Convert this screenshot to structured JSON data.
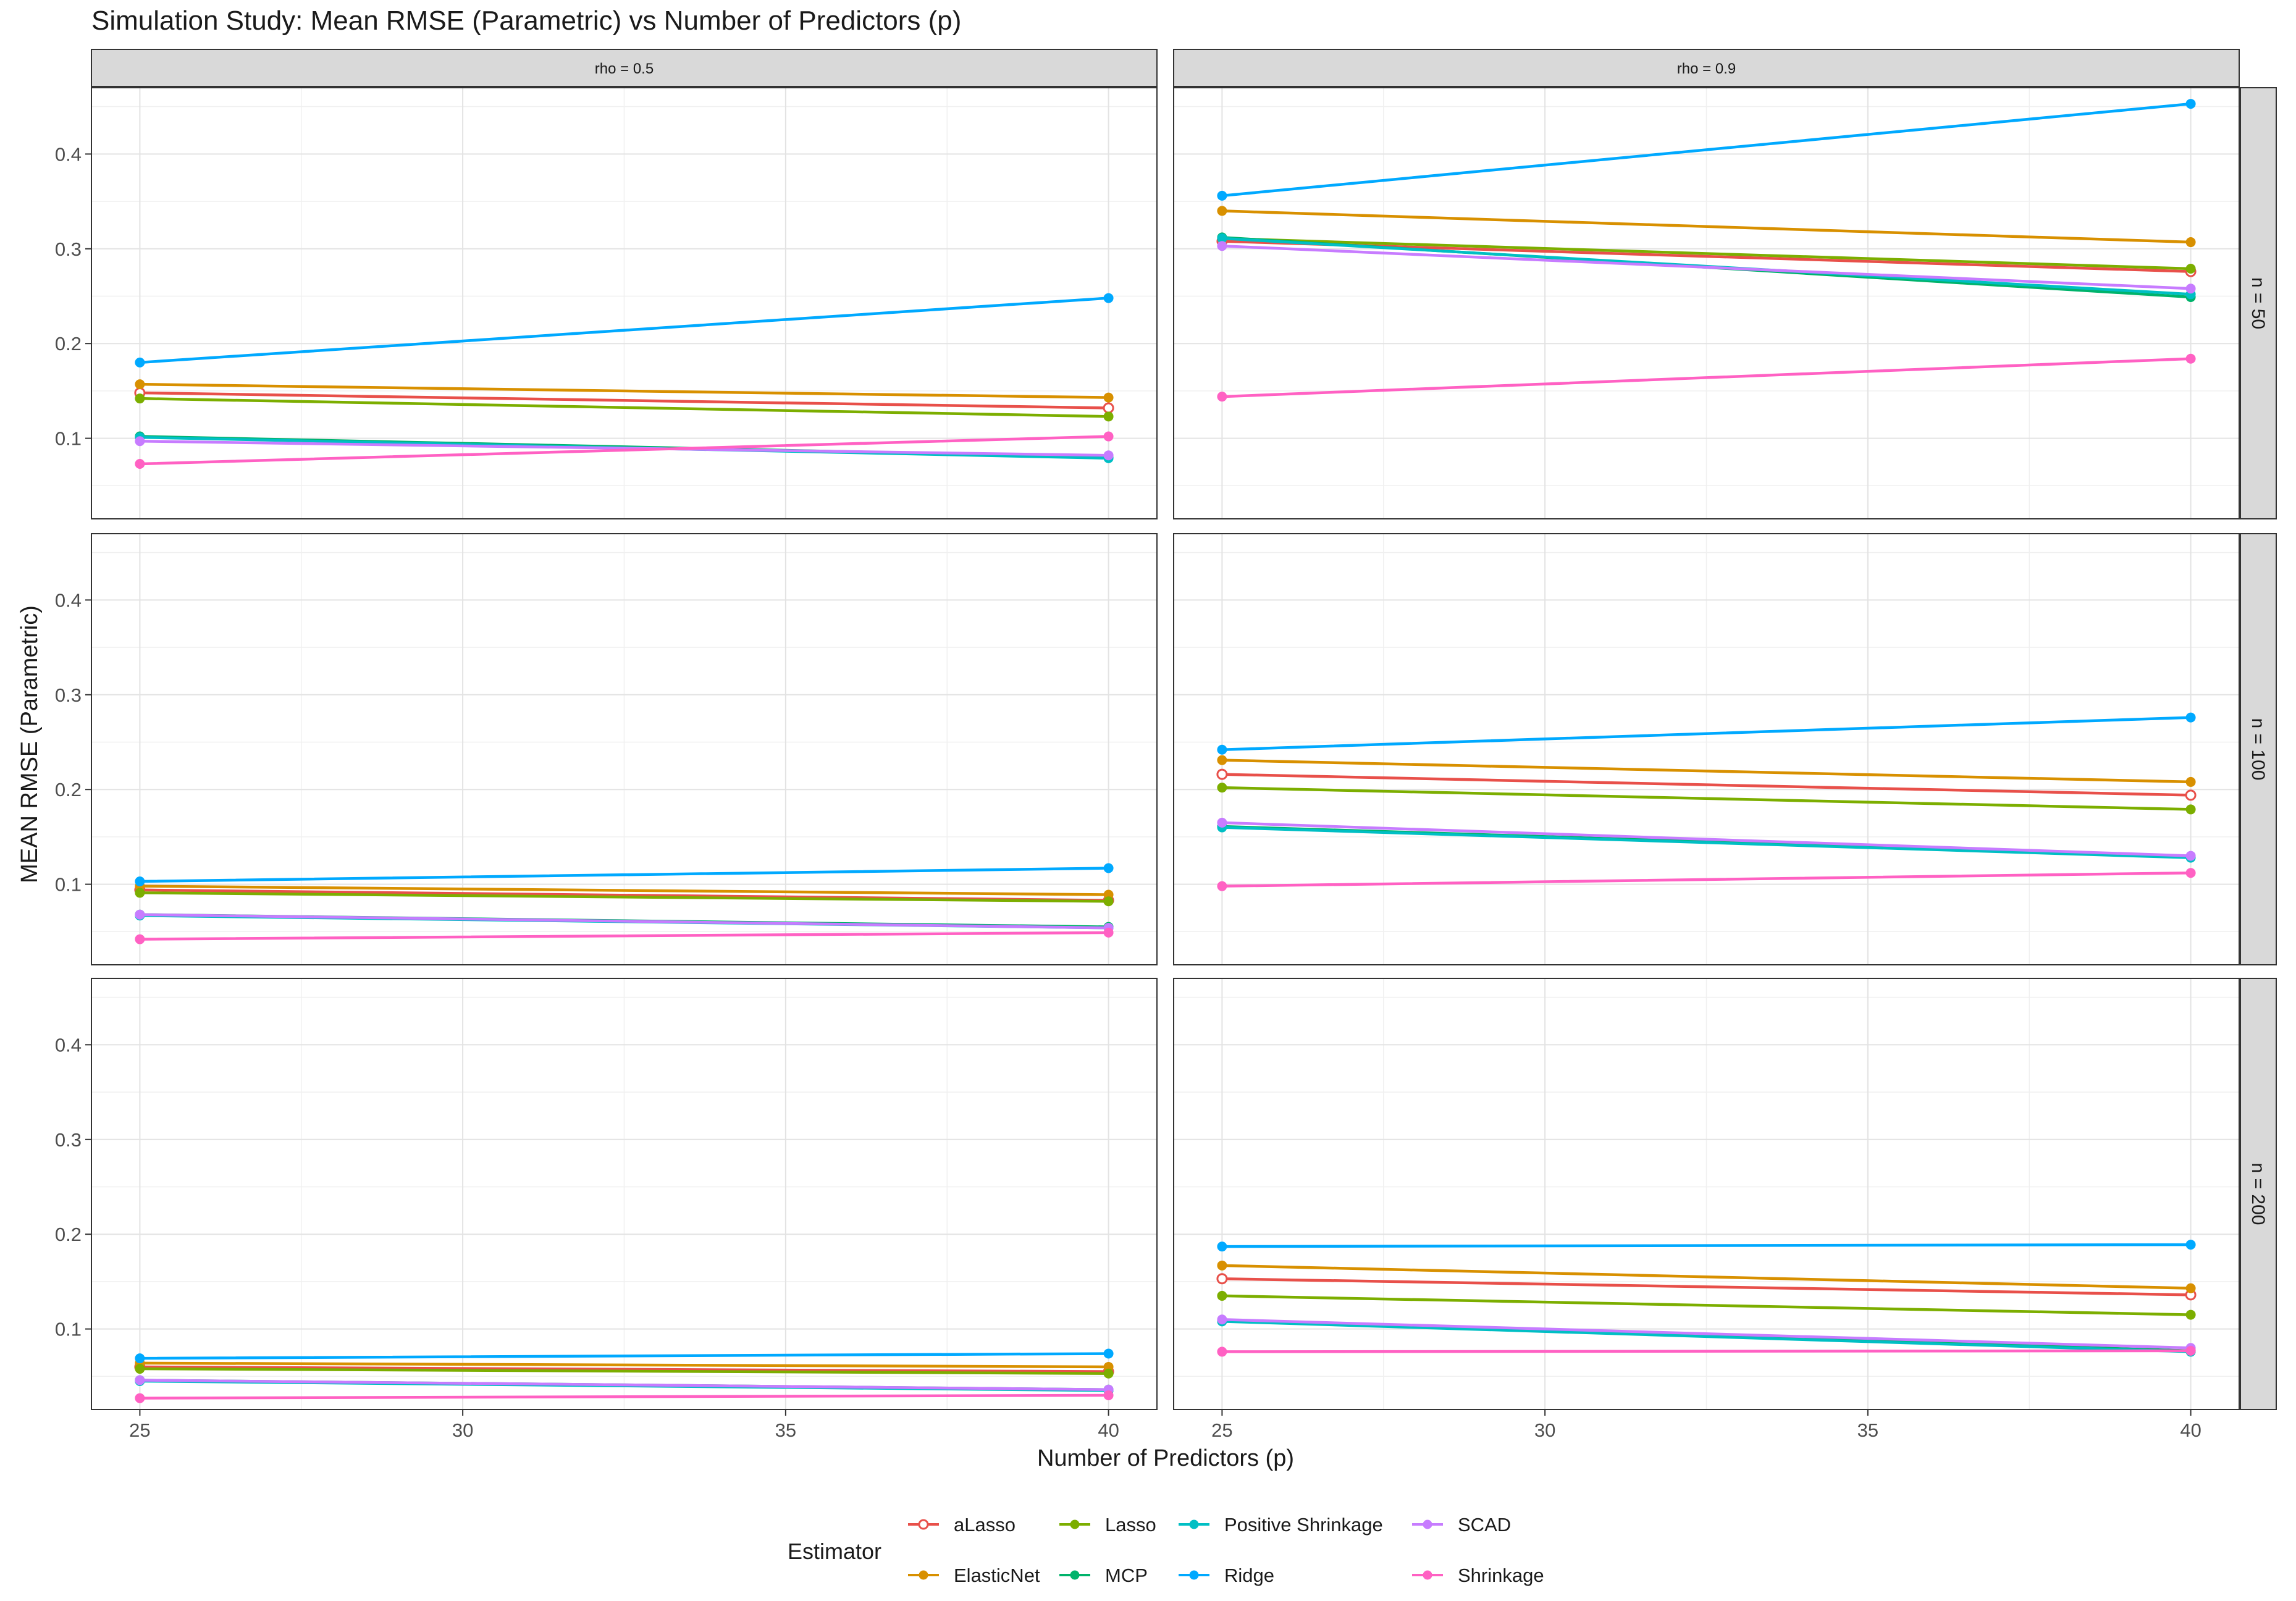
{
  "chart_data": {
    "type": "line",
    "title": "Simulation Study: Mean RMSE (Parametric) vs Number of Predictors (p)",
    "xlabel": "Number of Predictors (p)",
    "ylabel": "MEAN RMSE (Parametric)",
    "x": [
      25,
      40
    ],
    "x_ticks": [
      "25",
      "30",
      "35",
      "40"
    ],
    "y_ticks": [
      "0.1",
      "0.2",
      "0.3",
      "0.4"
    ],
    "ylim": [
      0.015,
      0.47
    ],
    "xlim": [
      24.25,
      40.75
    ],
    "grid": true,
    "legend_title": "Estimator",
    "legend_position": "bottom",
    "col_strips": [
      "rho = 0.5",
      "rho = 0.9"
    ],
    "row_strips": [
      "n = 50",
      "n = 100",
      "n = 200"
    ],
    "series_styles": [
      {
        "name": "aLasso",
        "color": "#E8504A",
        "marker": "open-circle"
      },
      {
        "name": "ElasticNet",
        "color": "#D89000",
        "marker": "circle"
      },
      {
        "name": "Lasso",
        "color": "#7CAE00",
        "marker": "circle"
      },
      {
        "name": "MCP",
        "color": "#00B36B",
        "marker": "circle"
      },
      {
        "name": "Positive Shrinkage",
        "color": "#00BFC4",
        "marker": "circle"
      },
      {
        "name": "Ridge",
        "color": "#00A9FF",
        "marker": "circle"
      },
      {
        "name": "SCAD",
        "color": "#C77CFF",
        "marker": "circle"
      },
      {
        "name": "Shrinkage",
        "color": "#FF61C3",
        "marker": "circle"
      }
    ],
    "legend_layout": [
      [
        "aLasso",
        "ElasticNet"
      ],
      [
        "Lasso",
        "MCP"
      ],
      [
        "Positive Shrinkage",
        "Ridge"
      ],
      [
        "SCAD",
        "Shrinkage"
      ]
    ],
    "panels": [
      {
        "row": 0,
        "col": 0,
        "n": 50,
        "rho": 0.5,
        "series": [
          {
            "name": "aLasso",
            "values": [
              0.148,
              0.132
            ]
          },
          {
            "name": "ElasticNet",
            "values": [
              0.157,
              0.143
            ]
          },
          {
            "name": "Lasso",
            "values": [
              0.142,
              0.123
            ]
          },
          {
            "name": "MCP",
            "values": [
              0.102,
              0.08
            ]
          },
          {
            "name": "Positive Shrinkage",
            "values": [
              0.101,
              0.079
            ]
          },
          {
            "name": "Ridge",
            "values": [
              0.18,
              0.248
            ]
          },
          {
            "name": "SCAD",
            "values": [
              0.097,
              0.082
            ]
          },
          {
            "name": "Shrinkage",
            "values": [
              0.073,
              0.102
            ]
          }
        ]
      },
      {
        "row": 0,
        "col": 1,
        "n": 50,
        "rho": 0.9,
        "series": [
          {
            "name": "aLasso",
            "values": [
              0.308,
              0.276
            ]
          },
          {
            "name": "ElasticNet",
            "values": [
              0.34,
              0.307
            ]
          },
          {
            "name": "Lasso",
            "values": [
              0.311,
              0.279
            ]
          },
          {
            "name": "MCP",
            "values": [
              0.312,
              0.249
            ]
          },
          {
            "name": "Positive Shrinkage",
            "values": [
              0.311,
              0.252
            ]
          },
          {
            "name": "Ridge",
            "values": [
              0.356,
              0.453
            ]
          },
          {
            "name": "SCAD",
            "values": [
              0.303,
              0.258
            ]
          },
          {
            "name": "Shrinkage",
            "values": [
              0.144,
              0.184
            ]
          }
        ]
      },
      {
        "row": 1,
        "col": 0,
        "n": 100,
        "rho": 0.5,
        "series": [
          {
            "name": "aLasso",
            "values": [
              0.094,
              0.083
            ]
          },
          {
            "name": "ElasticNet",
            "values": [
              0.098,
              0.089
            ]
          },
          {
            "name": "Lasso",
            "values": [
              0.091,
              0.082
            ]
          },
          {
            "name": "MCP",
            "values": [
              0.068,
              0.055
            ]
          },
          {
            "name": "Positive Shrinkage",
            "values": [
              0.067,
              0.054
            ]
          },
          {
            "name": "Ridge",
            "values": [
              0.103,
              0.117
            ]
          },
          {
            "name": "SCAD",
            "values": [
              0.068,
              0.054
            ]
          },
          {
            "name": "Shrinkage",
            "values": [
              0.042,
              0.049
            ]
          }
        ]
      },
      {
        "row": 1,
        "col": 1,
        "n": 100,
        "rho": 0.9,
        "series": [
          {
            "name": "aLasso",
            "values": [
              0.216,
              0.194
            ]
          },
          {
            "name": "ElasticNet",
            "values": [
              0.231,
              0.208
            ]
          },
          {
            "name": "Lasso",
            "values": [
              0.202,
              0.179
            ]
          },
          {
            "name": "MCP",
            "values": [
              0.161,
              0.129
            ]
          },
          {
            "name": "Positive Shrinkage",
            "values": [
              0.16,
              0.128
            ]
          },
          {
            "name": "Ridge",
            "values": [
              0.242,
              0.276
            ]
          },
          {
            "name": "SCAD",
            "values": [
              0.165,
              0.13
            ]
          },
          {
            "name": "Shrinkage",
            "values": [
              0.098,
              0.112
            ]
          }
        ]
      },
      {
        "row": 2,
        "col": 0,
        "n": 200,
        "rho": 0.5,
        "series": [
          {
            "name": "aLasso",
            "values": [
              0.06,
              0.055
            ]
          },
          {
            "name": "ElasticNet",
            "values": [
              0.064,
              0.06
            ]
          },
          {
            "name": "Lasso",
            "values": [
              0.058,
              0.053
            ]
          },
          {
            "name": "MCP",
            "values": [
              0.046,
              0.036
            ]
          },
          {
            "name": "Positive Shrinkage",
            "values": [
              0.045,
              0.035
            ]
          },
          {
            "name": "Ridge",
            "values": [
              0.069,
              0.074
            ]
          },
          {
            "name": "SCAD",
            "values": [
              0.046,
              0.036
            ]
          },
          {
            "name": "Shrinkage",
            "values": [
              0.027,
              0.03
            ]
          }
        ]
      },
      {
        "row": 2,
        "col": 1,
        "n": 200,
        "rho": 0.9,
        "series": [
          {
            "name": "aLasso",
            "values": [
              0.153,
              0.136
            ]
          },
          {
            "name": "ElasticNet",
            "values": [
              0.167,
              0.143
            ]
          },
          {
            "name": "Lasso",
            "values": [
              0.135,
              0.115
            ]
          },
          {
            "name": "MCP",
            "values": [
              0.109,
              0.077
            ]
          },
          {
            "name": "Positive Shrinkage",
            "values": [
              0.108,
              0.076
            ]
          },
          {
            "name": "Ridge",
            "values": [
              0.187,
              0.189
            ]
          },
          {
            "name": "SCAD",
            "values": [
              0.11,
              0.08
            ]
          },
          {
            "name": "Shrinkage",
            "values": [
              0.076,
              0.077
            ]
          }
        ]
      }
    ]
  }
}
